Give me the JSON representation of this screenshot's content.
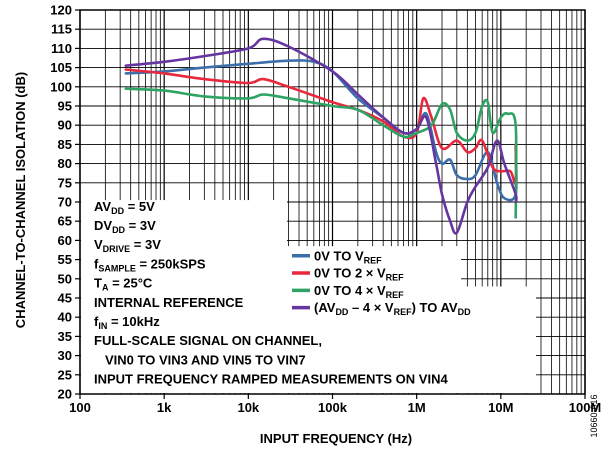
{
  "chart_data": {
    "type": "line",
    "title": "",
    "xlabel": "INPUT FREQUENCY (Hz)",
    "ylabel": "CHANNEL-TO-CHANNEL ISOLATION (dB)",
    "x_scale": "log",
    "xlim": [
      100,
      100000000
    ],
    "ylim": [
      20,
      120
    ],
    "x_ticks": [
      100,
      1000,
      10000,
      100000,
      1000000,
      10000000,
      100000000
    ],
    "x_tick_labels": [
      "100",
      "1k",
      "10k",
      "100k",
      "1M",
      "10M",
      "100M"
    ],
    "y_ticks": [
      20,
      25,
      30,
      35,
      40,
      45,
      50,
      55,
      60,
      65,
      70,
      75,
      80,
      85,
      90,
      95,
      100,
      105,
      110,
      115,
      120
    ],
    "y_tick_labels": [
      "20",
      "25",
      "30",
      "35",
      "40",
      "45",
      "50",
      "55",
      "60",
      "65",
      "70",
      "75",
      "80",
      "85",
      "90",
      "95",
      "100",
      "105",
      "110",
      "115",
      "120"
    ],
    "grid": true,
    "legend_position": "middle-right",
    "series": [
      {
        "name": "0V TO V_REF",
        "color": "#3b6eab",
        "points": [
          [
            350,
            103.5
          ],
          [
            1000,
            104
          ],
          [
            3000,
            105
          ],
          [
            10000,
            106
          ],
          [
            30000,
            106.8
          ],
          [
            60000,
            106.5
          ],
          [
            100000,
            104
          ],
          [
            200000,
            97
          ],
          [
            400000,
            92
          ],
          [
            700000,
            88
          ],
          [
            1000000,
            89
          ],
          [
            1300000,
            93
          ],
          [
            1700000,
            83
          ],
          [
            2000000,
            80
          ],
          [
            2500000,
            81
          ],
          [
            3000000,
            77
          ],
          [
            4000000,
            76
          ],
          [
            5000000,
            77
          ],
          [
            7000000,
            83
          ],
          [
            9000000,
            75
          ],
          [
            11000000,
            71
          ],
          [
            15000000,
            72
          ],
          [
            15000000,
            84
          ]
        ]
      },
      {
        "name": "0V TO 2 × V_REF",
        "color": "#e8283c",
        "points": [
          [
            350,
            104.5
          ],
          [
            1000,
            103.5
          ],
          [
            3000,
            102
          ],
          [
            10000,
            101
          ],
          [
            15000,
            102
          ],
          [
            30000,
            100
          ],
          [
            100000,
            96
          ],
          [
            200000,
            94
          ],
          [
            400000,
            91
          ],
          [
            700000,
            87
          ],
          [
            1000000,
            88
          ],
          [
            1200000,
            97
          ],
          [
            1500000,
            92
          ],
          [
            2000000,
            84
          ],
          [
            3000000,
            86
          ],
          [
            4000000,
            83
          ],
          [
            5000000,
            84
          ],
          [
            6000000,
            86
          ],
          [
            8000000,
            79
          ],
          [
            10000000,
            78
          ],
          [
            13000000,
            78
          ],
          [
            15000000,
            75
          ],
          [
            15000000,
            85
          ]
        ]
      },
      {
        "name": "0V TO 4 × V_REF",
        "color": "#2ea363",
        "points": [
          [
            350,
            99.5
          ],
          [
            1000,
            99
          ],
          [
            3000,
            97.5
          ],
          [
            10000,
            97
          ],
          [
            15000,
            98
          ],
          [
            30000,
            97
          ],
          [
            100000,
            95
          ],
          [
            200000,
            94
          ],
          [
            400000,
            90
          ],
          [
            700000,
            87
          ],
          [
            1000000,
            88
          ],
          [
            1500000,
            90
          ],
          [
            2000000,
            95.5
          ],
          [
            2500000,
            94
          ],
          [
            3000000,
            88
          ],
          [
            4000000,
            86
          ],
          [
            5000000,
            88
          ],
          [
            6000000,
            95
          ],
          [
            7000000,
            96
          ],
          [
            8000000,
            88
          ],
          [
            10000000,
            92
          ],
          [
            12000000,
            93
          ],
          [
            15000000,
            90
          ],
          [
            15000000,
            66
          ]
        ]
      },
      {
        "name": "(AV_DD – 4 × V_REF) TO AV_DD",
        "color": "#6535a0",
        "points": [
          [
            350,
            105.5
          ],
          [
            1000,
            106.5
          ],
          [
            3000,
            108
          ],
          [
            10000,
            110
          ],
          [
            15000,
            112.5
          ],
          [
            30000,
            110.5
          ],
          [
            100000,
            104
          ],
          [
            200000,
            98
          ],
          [
            400000,
            92
          ],
          [
            700000,
            88
          ],
          [
            1000000,
            89
          ],
          [
            1300000,
            92
          ],
          [
            1700000,
            80
          ],
          [
            2000000,
            72
          ],
          [
            2500000,
            65
          ],
          [
            3000000,
            62
          ],
          [
            4000000,
            70
          ],
          [
            5000000,
            74
          ],
          [
            7000000,
            79
          ],
          [
            9000000,
            86
          ],
          [
            11000000,
            80
          ],
          [
            15000000,
            72
          ],
          [
            15000000,
            70
          ]
        ]
      }
    ],
    "annotations": {
      "conditions": [
        "AV_DD = 5V",
        "DV_DD = 3V",
        "V_DRIVE = 3V",
        "f_SAMPLE = 250kSPS",
        "T_A = 25°C",
        "INTERNAL REFERENCE",
        "f_IN = 10kHz"
      ],
      "notes": [
        "FULL-SCALE SIGNAL ON CHANNEL,",
        "VIN0 TO VIN3 AND VIN5 TO VIN7",
        "INPUT FREQUENCY RAMPED MEASUREMENTS ON VIN4"
      ]
    },
    "figure_id": "10660-016"
  },
  "render": {
    "conditions_text": [
      [
        [
          "AV",
          ""
        ],
        [
          "DD",
          "sub"
        ],
        [
          " = 5V",
          ""
        ]
      ],
      [
        [
          "DV",
          ""
        ],
        [
          "DD",
          "sub"
        ],
        [
          " = 3V",
          ""
        ]
      ],
      [
        [
          "V",
          ""
        ],
        [
          "DRIVE",
          "sub"
        ],
        [
          " = 3V",
          ""
        ]
      ],
      [
        [
          "f",
          ""
        ],
        [
          "SAMPLE",
          "sub"
        ],
        [
          " = 250kSPS",
          ""
        ]
      ],
      [
        [
          "T",
          ""
        ],
        [
          "A",
          "sub"
        ],
        [
          " = 25°C",
          ""
        ]
      ],
      [
        [
          "INTERNAL REFERENCE",
          ""
        ]
      ],
      [
        [
          "f",
          ""
        ],
        [
          "IN",
          "sub"
        ],
        [
          " = 10kHz",
          ""
        ]
      ]
    ],
    "legend_text": [
      [
        [
          "0V TO V",
          ""
        ],
        [
          "REF",
          "sub"
        ]
      ],
      [
        [
          "0V TO 2 × V",
          ""
        ],
        [
          "REF",
          "sub"
        ]
      ],
      [
        [
          "0V TO 4 × V",
          ""
        ],
        [
          "REF",
          "sub"
        ]
      ],
      [
        [
          "(AV",
          ""
        ],
        [
          "DD",
          "sub"
        ],
        [
          " – 4 × V",
          ""
        ],
        [
          "REF",
          "sub"
        ],
        [
          ") TO AV",
          ""
        ],
        [
          "DD",
          "sub"
        ]
      ]
    ]
  }
}
